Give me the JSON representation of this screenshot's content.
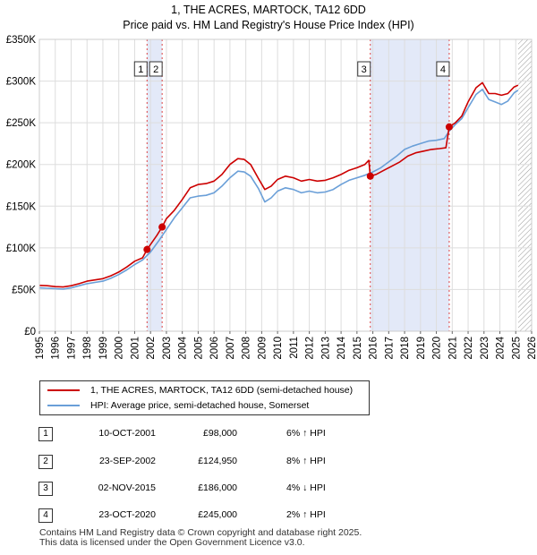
{
  "chart_data": {
    "type": "line",
    "title": "1, THE ACRES, MARTOCK, TA12 6DD",
    "subtitle": "Price paid vs. HM Land Registry's House Price Index (HPI)",
    "xlabel": "",
    "ylabel": "",
    "xlim": [
      1995,
      2026
    ],
    "ylim": [
      0,
      350000
    ],
    "y_ticks": [
      0,
      50000,
      100000,
      150000,
      200000,
      250000,
      300000,
      350000
    ],
    "y_tick_labels": [
      "£0",
      "£50K",
      "£100K",
      "£150K",
      "£200K",
      "£250K",
      "£300K",
      "£350K"
    ],
    "x_ticks": [
      1995,
      1996,
      1997,
      1998,
      1999,
      2000,
      2001,
      2002,
      2003,
      2004,
      2005,
      2006,
      2007,
      2008,
      2009,
      2010,
      2011,
      2012,
      2013,
      2014,
      2015,
      2016,
      2017,
      2018,
      2019,
      2020,
      2021,
      2022,
      2023,
      2024,
      2025,
      2026
    ],
    "x_tick_labels": [
      "1995",
      "1996",
      "1997",
      "1998",
      "1999",
      "2000",
      "2001",
      "2002",
      "2003",
      "2004",
      "2005",
      "2006",
      "2007",
      "2008",
      "2009",
      "2010",
      "2011",
      "2012",
      "2013",
      "2014",
      "2015",
      "2016",
      "2017",
      "2018",
      "2019",
      "2020",
      "2021",
      "2022",
      "2023",
      "2024",
      "2025",
      "2026"
    ],
    "grid": true,
    "legend_position": "below",
    "series": [
      {
        "name": "1, THE ACRES, MARTOCK, TA12 6DD (semi-detached house)",
        "color": "#cc0000",
        "points": [
          [
            1995.0,
            55000
          ],
          [
            1995.5,
            54500
          ],
          [
            1996.0,
            53500
          ],
          [
            1996.5,
            53000
          ],
          [
            1997.0,
            54500
          ],
          [
            1997.5,
            57000
          ],
          [
            1998.0,
            60000
          ],
          [
            1998.5,
            61500
          ],
          [
            1999.0,
            63000
          ],
          [
            1999.5,
            66500
          ],
          [
            2000.0,
            71000
          ],
          [
            2000.5,
            77000
          ],
          [
            2001.0,
            84000
          ],
          [
            2001.5,
            88000
          ],
          [
            2001.78,
            98000
          ],
          [
            2002.0,
            104000
          ],
          [
            2002.4,
            115000
          ],
          [
            2002.73,
            124950
          ],
          [
            2003.0,
            135000
          ],
          [
            2003.5,
            145000
          ],
          [
            2004.0,
            158000
          ],
          [
            2004.5,
            172000
          ],
          [
            2005.0,
            176000
          ],
          [
            2005.5,
            177000
          ],
          [
            2006.0,
            180000
          ],
          [
            2006.5,
            188000
          ],
          [
            2007.0,
            200000
          ],
          [
            2007.5,
            207000
          ],
          [
            2007.9,
            206000
          ],
          [
            2008.3,
            200000
          ],
          [
            2008.8,
            183000
          ],
          [
            2009.2,
            170000
          ],
          [
            2009.6,
            174000
          ],
          [
            2010.0,
            182000
          ],
          [
            2010.5,
            186000
          ],
          [
            2011.0,
            184000
          ],
          [
            2011.5,
            180000
          ],
          [
            2012.0,
            182000
          ],
          [
            2012.5,
            180000
          ],
          [
            2013.0,
            181000
          ],
          [
            2013.5,
            184000
          ],
          [
            2014.0,
            188000
          ],
          [
            2014.5,
            193000
          ],
          [
            2015.0,
            196000
          ],
          [
            2015.5,
            200000
          ],
          [
            2015.75,
            205000
          ],
          [
            2015.84,
            186000
          ],
          [
            2016.2,
            188000
          ],
          [
            2016.7,
            193000
          ],
          [
            2017.2,
            198000
          ],
          [
            2017.7,
            203000
          ],
          [
            2018.2,
            210000
          ],
          [
            2018.7,
            214000
          ],
          [
            2019.2,
            216000
          ],
          [
            2019.7,
            218000
          ],
          [
            2020.2,
            219000
          ],
          [
            2020.6,
            220000
          ],
          [
            2020.81,
            245000
          ],
          [
            2021.2,
            250000
          ],
          [
            2021.6,
            258000
          ],
          [
            2022.0,
            275000
          ],
          [
            2022.5,
            292000
          ],
          [
            2022.9,
            298000
          ],
          [
            2023.3,
            285000
          ],
          [
            2023.7,
            285000
          ],
          [
            2024.1,
            283000
          ],
          [
            2024.5,
            285000
          ],
          [
            2024.9,
            293000
          ],
          [
            2025.15,
            295000
          ]
        ]
      },
      {
        "name": "HPI: Average price, semi-detached house, Somerset",
        "color": "#6a9fd8",
        "points": [
          [
            1995.0,
            52000
          ],
          [
            1995.5,
            51500
          ],
          [
            1996.0,
            51000
          ],
          [
            1996.5,
            50500
          ],
          [
            1997.0,
            52000
          ],
          [
            1997.5,
            54500
          ],
          [
            1998.0,
            57000
          ],
          [
            1998.5,
            58500
          ],
          [
            1999.0,
            60000
          ],
          [
            1999.5,
            63500
          ],
          [
            2000.0,
            68000
          ],
          [
            2000.5,
            73500
          ],
          [
            2001.0,
            80000
          ],
          [
            2001.5,
            85500
          ],
          [
            2002.0,
            95000
          ],
          [
            2002.5,
            108000
          ],
          [
            2003.0,
            122000
          ],
          [
            2003.5,
            136000
          ],
          [
            2004.0,
            148000
          ],
          [
            2004.5,
            160000
          ],
          [
            2005.0,
            162000
          ],
          [
            2005.5,
            163000
          ],
          [
            2006.0,
            166000
          ],
          [
            2006.5,
            174000
          ],
          [
            2007.0,
            184000
          ],
          [
            2007.5,
            192000
          ],
          [
            2007.9,
            191000
          ],
          [
            2008.3,
            186000
          ],
          [
            2008.8,
            171000
          ],
          [
            2009.2,
            155000
          ],
          [
            2009.6,
            160000
          ],
          [
            2010.0,
            168000
          ],
          [
            2010.5,
            172000
          ],
          [
            2011.0,
            170000
          ],
          [
            2011.5,
            166000
          ],
          [
            2012.0,
            168000
          ],
          [
            2012.5,
            166000
          ],
          [
            2013.0,
            167000
          ],
          [
            2013.5,
            170000
          ],
          [
            2014.0,
            176000
          ],
          [
            2014.5,
            181000
          ],
          [
            2015.0,
            184000
          ],
          [
            2015.5,
            187000
          ],
          [
            2016.0,
            191000
          ],
          [
            2016.5,
            196000
          ],
          [
            2017.0,
            203000
          ],
          [
            2017.5,
            210000
          ],
          [
            2018.0,
            218000
          ],
          [
            2018.5,
            222000
          ],
          [
            2019.0,
            225000
          ],
          [
            2019.5,
            228000
          ],
          [
            2020.0,
            229000
          ],
          [
            2020.5,
            231000
          ],
          [
            2020.81,
            240000
          ],
          [
            2021.2,
            248000
          ],
          [
            2021.6,
            255000
          ],
          [
            2022.0,
            268000
          ],
          [
            2022.5,
            284000
          ],
          [
            2022.9,
            290000
          ],
          [
            2023.3,
            278000
          ],
          [
            2023.7,
            275000
          ],
          [
            2024.1,
            272000
          ],
          [
            2024.5,
            276000
          ],
          [
            2024.9,
            286000
          ],
          [
            2025.15,
            289000
          ]
        ]
      }
    ],
    "sales": [
      {
        "id": "1",
        "x": 2001.78,
        "value": 98000,
        "date": "10-OCT-2001",
        "price": "£98,000",
        "hpi": "6% ↑ HPI"
      },
      {
        "id": "2",
        "x": 2002.73,
        "value": 124950,
        "date": "23-SEP-2002",
        "price": "£124,950",
        "hpi": "8% ↑ HPI"
      },
      {
        "id": "3",
        "x": 2015.84,
        "value": 186000,
        "date": "02-NOV-2015",
        "price": "£186,000",
        "hpi": "4% ↓ HPI"
      },
      {
        "id": "4",
        "x": 2020.81,
        "value": 245000,
        "date": "23-OCT-2020",
        "price": "£245,000",
        "hpi": "2% ↑ HPI"
      }
    ],
    "shaded_ranges": [
      [
        2001.78,
        2002.73
      ],
      [
        2015.84,
        2020.81
      ]
    ],
    "hatch_from": 2025.15
  },
  "footer": {
    "line1": "Contains HM Land Registry data © Crown copyright and database right 2025.",
    "line2": "This data is licensed under the Open Government Licence v3.0."
  }
}
